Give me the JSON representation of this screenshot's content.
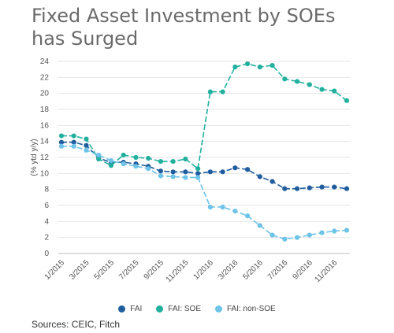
{
  "title_lines": [
    "Fixed Asset Investment by SOEs",
    "has Surged"
  ],
  "source": "Sources: CEIC, Fitch",
  "chart_data": {
    "type": "line",
    "ylabel": "(% ytd y/y)",
    "ylim": [
      0,
      24
    ],
    "yticks": [
      0,
      2,
      4,
      6,
      8,
      10,
      12,
      14,
      16,
      18,
      20,
      22,
      24
    ],
    "grid": true,
    "legend_position": "bottom",
    "x": [
      "1/2015",
      "2/2015",
      "3/2015",
      "4/2015",
      "5/2015",
      "6/2015",
      "7/2015",
      "8/2015",
      "9/2015",
      "10/2015",
      "11/2015",
      "12/2015",
      "1/2016",
      "2/2016",
      "3/2016",
      "4/2016",
      "5/2016",
      "6/2016",
      "7/2016",
      "8/2016",
      "9/2016",
      "10/2016",
      "11/2016",
      "12/2016"
    ],
    "xtick_labels": [
      "1/2015",
      "3/2015",
      "5/2015",
      "7/2015",
      "9/2015",
      "11/2015",
      "1/2016",
      "3/2016",
      "5/2016",
      "7/2016",
      "9/2016",
      "11/2016"
    ],
    "series": [
      {
        "name": "FAI",
        "color": "#1f5d9e",
        "values": [
          13.9,
          13.9,
          13.5,
          11.9,
          11.4,
          11.4,
          11.2,
          10.9,
          10.3,
          10.2,
          10.2,
          10.0,
          10.2,
          10.2,
          10.7,
          10.5,
          9.6,
          9.0,
          8.1,
          8.1,
          8.2,
          8.3,
          8.3,
          8.1
        ]
      },
      {
        "name": "FAI: SOE",
        "color": "#21b09d",
        "values": [
          14.7,
          14.7,
          14.3,
          11.8,
          11.0,
          12.3,
          12.0,
          11.9,
          11.5,
          11.5,
          11.8,
          10.6,
          20.2,
          20.2,
          23.3,
          23.7,
          23.3,
          23.5,
          21.8,
          21.5,
          21.1,
          20.5,
          20.3,
          19.1
        ]
      },
      {
        "name": "FAI: non-SOE",
        "color": "#6ec3e8",
        "values": [
          13.4,
          13.4,
          12.9,
          12.3,
          11.6,
          11.2,
          10.9,
          10.6,
          9.7,
          9.6,
          9.5,
          9.5,
          5.8,
          5.8,
          5.3,
          4.7,
          3.5,
          2.3,
          1.8,
          2.0,
          2.3,
          2.6,
          2.8,
          2.9
        ]
      }
    ]
  }
}
